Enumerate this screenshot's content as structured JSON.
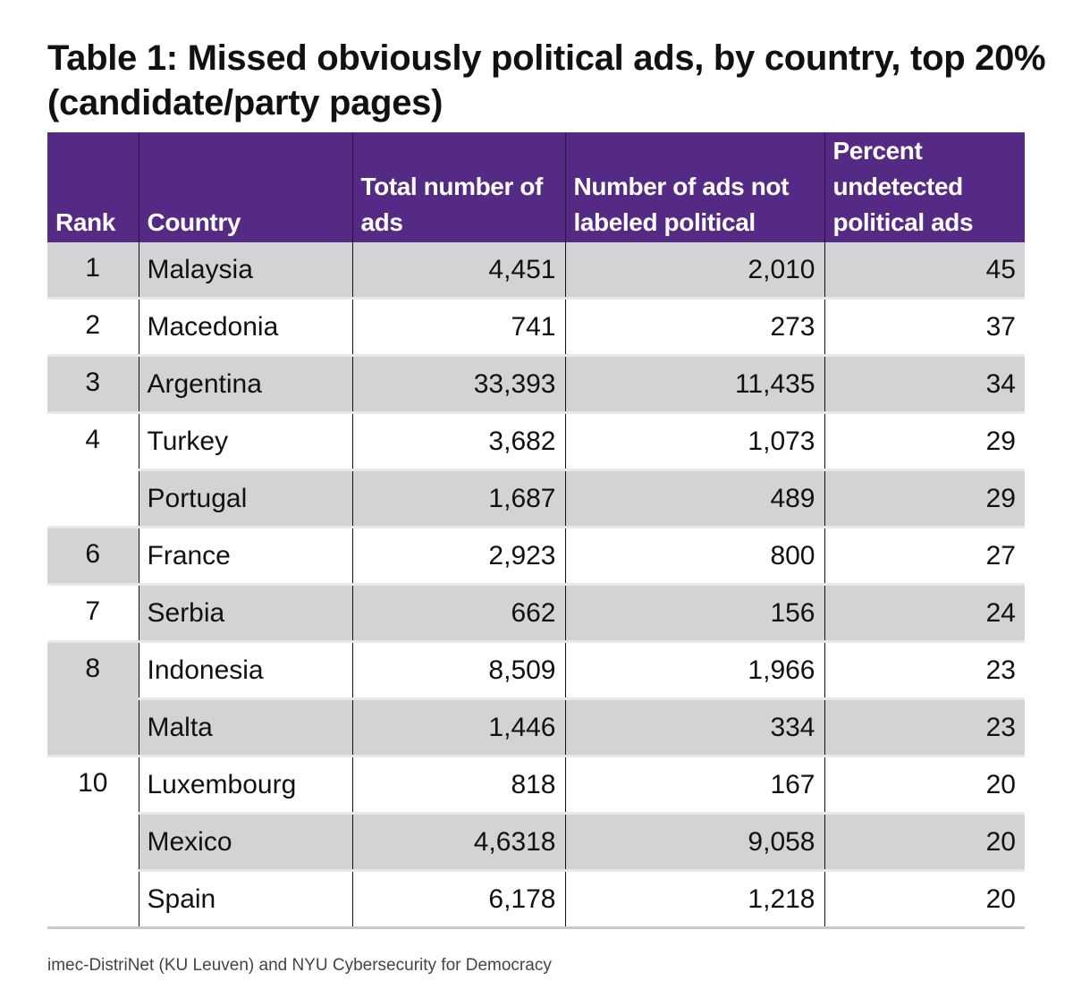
{
  "title": "Table 1: Missed obviously political ads, by country, top 20% (candidate/party pages)",
  "footer": "imec-DistriNet (KU Leuven) and NYU Cybersecurity for Democracy",
  "colors": {
    "header_bg": "#552a85",
    "header_text": "#ffffff",
    "row_shade": "#d1d3d4"
  },
  "chart_data": {
    "type": "table",
    "title": "Table 1: Missed obviously political ads, by country, top 20% (candidate/party pages)",
    "columns": [
      "Rank",
      "Country",
      "Total number of ads",
      "Number of ads not labeled political",
      "Percent undetected political ads"
    ],
    "rank_groups": [
      {
        "rank": "1",
        "rows": 1
      },
      {
        "rank": "2",
        "rows": 1
      },
      {
        "rank": "3",
        "rows": 1
      },
      {
        "rank": "4",
        "rows": 2
      },
      {
        "rank": "6",
        "rows": 1
      },
      {
        "rank": "7",
        "rows": 1
      },
      {
        "rank": "8",
        "rows": 2
      },
      {
        "rank": "10",
        "rows": 3
      }
    ],
    "rows": [
      [
        "Malaysia",
        "4,451",
        "2,010",
        "45"
      ],
      [
        "Macedonia",
        "741",
        "273",
        "37"
      ],
      [
        "Argentina",
        "33,393",
        "11,435",
        "34"
      ],
      [
        "Turkey",
        "3,682",
        "1,073",
        "29"
      ],
      [
        "Portugal",
        "1,687",
        "489",
        "29"
      ],
      [
        "France",
        "2,923",
        "800",
        "27"
      ],
      [
        "Serbia",
        "662",
        "156",
        "24"
      ],
      [
        "Indonesia",
        "8,509",
        "1,966",
        "23"
      ],
      [
        "Malta",
        "1,446",
        "334",
        "23"
      ],
      [
        "Luxembourg",
        "818",
        "167",
        "20"
      ],
      [
        "Mexico",
        "4,6318",
        "9,058",
        "20"
      ],
      [
        "Spain",
        "6,178",
        "1,218",
        "20"
      ]
    ]
  }
}
